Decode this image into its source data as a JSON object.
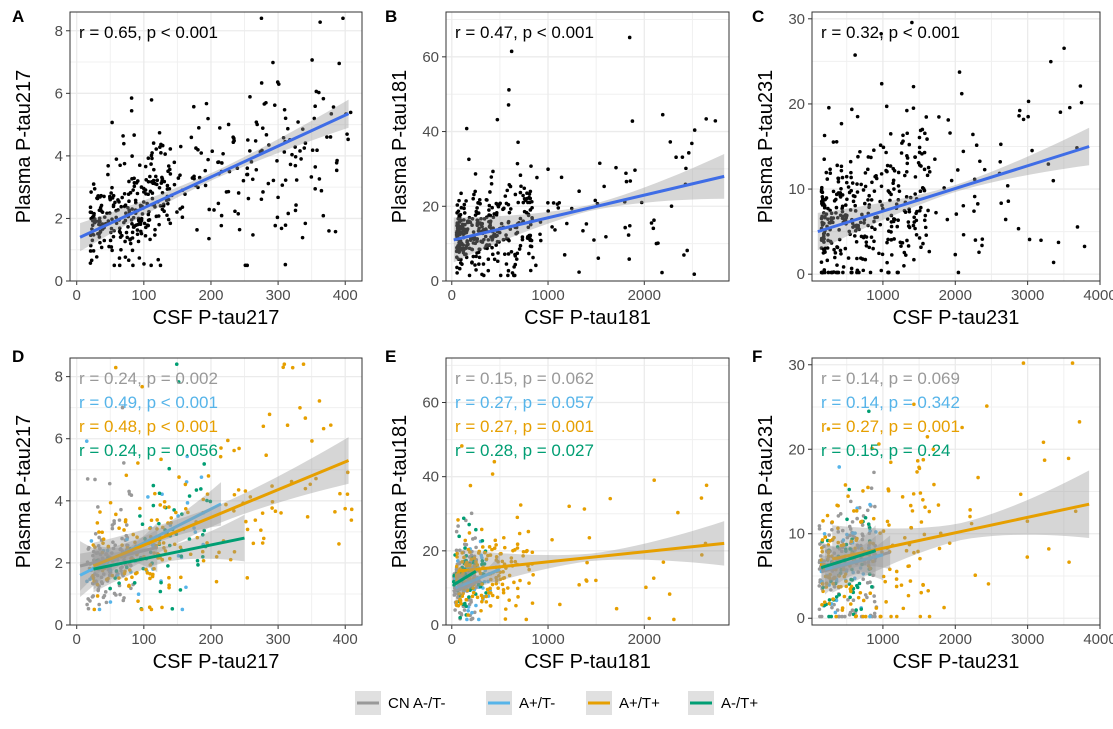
{
  "colors": {
    "all": "#000000",
    "fit_all": "#3f6de6",
    "CN A-/T-": "#999999",
    "A+/T-": "#56b4e9",
    "A+/T+": "#e69f00",
    "A-/T+": "#009e73"
  },
  "legend": {
    "entries": [
      {
        "label": "CN A-/T-",
        "color": "#999999"
      },
      {
        "label": "A+/T-",
        "color": "#56b4e9"
      },
      {
        "label": "A+/T+",
        "color": "#e69f00"
      },
      {
        "label": "A-/T+",
        "color": "#009e73"
      }
    ]
  },
  "chart_data": [
    {
      "panel": "A",
      "type": "scatter",
      "xlabel": "CSF P-tau217",
      "ylabel": "Plasma P-tau217",
      "xlim": [
        -10,
        425
      ],
      "ylim": [
        0,
        8.6
      ],
      "xticks": [
        0,
        100,
        200,
        300,
        400
      ],
      "yticks": [
        0,
        2,
        4,
        6,
        8
      ],
      "annotations": [
        {
          "text": "r = 0.65, p < 0.001",
          "color": "#000000"
        }
      ],
      "series": [
        {
          "group": "all",
          "fit": [
            [
              5,
              1.4
            ],
            [
              405,
              5.35
            ]
          ],
          "band": [
            0.12,
            0.45
          ]
        }
      ],
      "approx_points": 420
    },
    {
      "panel": "B",
      "type": "scatter",
      "xlabel": "CSF P-tau181",
      "ylabel": "Plasma P-tau181",
      "xlim": [
        -60,
        2880
      ],
      "ylim": [
        0,
        72
      ],
      "xticks": [
        0,
        1000,
        2000
      ],
      "yticks": [
        0,
        20,
        40,
        60
      ],
      "annotations": [
        {
          "text": "r = 0.47, p < 0.001",
          "color": "#000000"
        }
      ],
      "series": [
        {
          "group": "all",
          "fit": [
            [
              20,
              11
            ],
            [
              2830,
              28
            ]
          ],
          "band": [
            0.8,
            6
          ]
        }
      ],
      "approx_points": 400
    },
    {
      "panel": "C",
      "type": "scatter",
      "xlabel": "CSF P-tau231",
      "ylabel": "Plasma P-tau231",
      "xlim": [
        20,
        4000
      ],
      "ylim": [
        -0.8,
        30.8
      ],
      "xticks": [
        1000,
        2000,
        3000,
        4000
      ],
      "yticks": [
        0,
        10,
        20,
        30
      ],
      "annotations": [
        {
          "text": "r = 0.32, p < 0.001",
          "color": "#000000"
        }
      ],
      "series": [
        {
          "group": "all",
          "fit": [
            [
              100,
              5
            ],
            [
              3850,
              15
            ]
          ],
          "band": [
            0.4,
            2.2
          ]
        }
      ],
      "approx_points": 420
    },
    {
      "panel": "D",
      "type": "scatter",
      "xlabel": "CSF P-tau217",
      "ylabel": "Plasma P-tau217",
      "xlim": [
        -10,
        425
      ],
      "ylim": [
        0,
        8.6
      ],
      "xticks": [
        0,
        100,
        200,
        300,
        400
      ],
      "yticks": [
        0,
        2,
        4,
        6,
        8
      ],
      "annotations": [
        {
          "text": "r = 0.24, p = 0.002",
          "color": "#999999"
        },
        {
          "text": "r = 0.49, p < 0.001",
          "color": "#56b4e9"
        },
        {
          "text": "r = 0.48, p < 0.001",
          "color": "#e69f00"
        },
        {
          "text": "r = 0.24, p = 0.056",
          "color": "#009e73"
        }
      ],
      "series": [
        {
          "group": "CN A-/T-",
          "fit": [
            [
              5,
              1.9
            ],
            [
              120,
              2.5
            ]
          ],
          "band": [
            0.15,
            0.8
          ]
        },
        {
          "group": "A+/T-",
          "fit": [
            [
              5,
              1.6
            ],
            [
              215,
              3.9
            ]
          ],
          "band": [
            0.2,
            0.7
          ]
        },
        {
          "group": "A+/T+",
          "fit": [
            [
              25,
              1.9
            ],
            [
              405,
              5.3
            ]
          ],
          "band": [
            0.3,
            0.75
          ]
        },
        {
          "group": "A-/T+",
          "fit": [
            [
              25,
              1.8
            ],
            [
              250,
              2.8
            ]
          ],
          "band": [
            0.25,
            0.75
          ]
        }
      ]
    },
    {
      "panel": "E",
      "type": "scatter",
      "xlabel": "CSF P-tau181",
      "ylabel": "Plasma P-tau181",
      "xlim": [
        -60,
        2880
      ],
      "ylim": [
        0,
        72
      ],
      "xticks": [
        0,
        1000,
        2000
      ],
      "yticks": [
        0,
        20,
        40,
        60
      ],
      "annotations": [
        {
          "text": "r = 0.15, p = 0.062",
          "color": "#999999"
        },
        {
          "text": "r = 0.27, p = 0.057",
          "color": "#56b4e9"
        },
        {
          "text": "r = 0.27, p = 0.001",
          "color": "#e69f00"
        },
        {
          "text": "r = 0.28, p = 0.027",
          "color": "#009e73"
        }
      ],
      "series": [
        {
          "group": "CN A-/T-",
          "fit": [
            [
              10,
              9
            ],
            [
              300,
              12
            ]
          ],
          "band": [
            0.6,
            1.5
          ]
        },
        {
          "group": "A+/T-",
          "fit": [
            [
              40,
              10
            ],
            [
              500,
              15
            ]
          ],
          "band": [
            1,
            4
          ]
        },
        {
          "group": "A+/T+",
          "fit": [
            [
              60,
              14.5
            ],
            [
              2830,
              22
            ]
          ],
          "band": [
            1,
            6
          ]
        },
        {
          "group": "A-/T+",
          "fit": [
            [
              30,
              11
            ],
            [
              250,
              14.5
            ]
          ],
          "band": [
            1.5,
            3
          ]
        }
      ]
    },
    {
      "panel": "F",
      "type": "scatter",
      "xlabel": "CSF P-tau231",
      "ylabel": "Plasma P-tau231",
      "xlim": [
        20,
        4000
      ],
      "ylim": [
        -0.8,
        30.8
      ],
      "xticks": [
        1000,
        2000,
        3000,
        4000
      ],
      "yticks": [
        0,
        10,
        20,
        30
      ],
      "annotations": [
        {
          "text": "r = 0.14, p = 0.069",
          "color": "#999999"
        },
        {
          "text": "r = 0.14, p = 0.342",
          "color": "#56b4e9"
        },
        {
          "text": "r = 0.27, p = 0.001",
          "color": "#e69f00"
        },
        {
          "text": "r = 0.15, p = 0.24",
          "color": "#009e73"
        }
      ],
      "series": [
        {
          "group": "CN A-/T-",
          "fit": [
            [
              150,
              5.5
            ],
            [
              1100,
              7.8
            ]
          ],
          "band": [
            0.6,
            2
          ]
        },
        {
          "group": "A+/T-",
          "fit": [
            [
              200,
              5.8
            ],
            [
              1000,
              7.5
            ]
          ],
          "band": [
            1.5,
            3
          ]
        },
        {
          "group": "A+/T+",
          "fit": [
            [
              300,
              7
            ],
            [
              3850,
              13.5
            ]
          ],
          "band": [
            1,
            4
          ]
        },
        {
          "group": "A-/T+",
          "fit": [
            [
              150,
              6
            ],
            [
              900,
              8
            ]
          ],
          "band": [
            1.5,
            3
          ]
        }
      ]
    }
  ]
}
